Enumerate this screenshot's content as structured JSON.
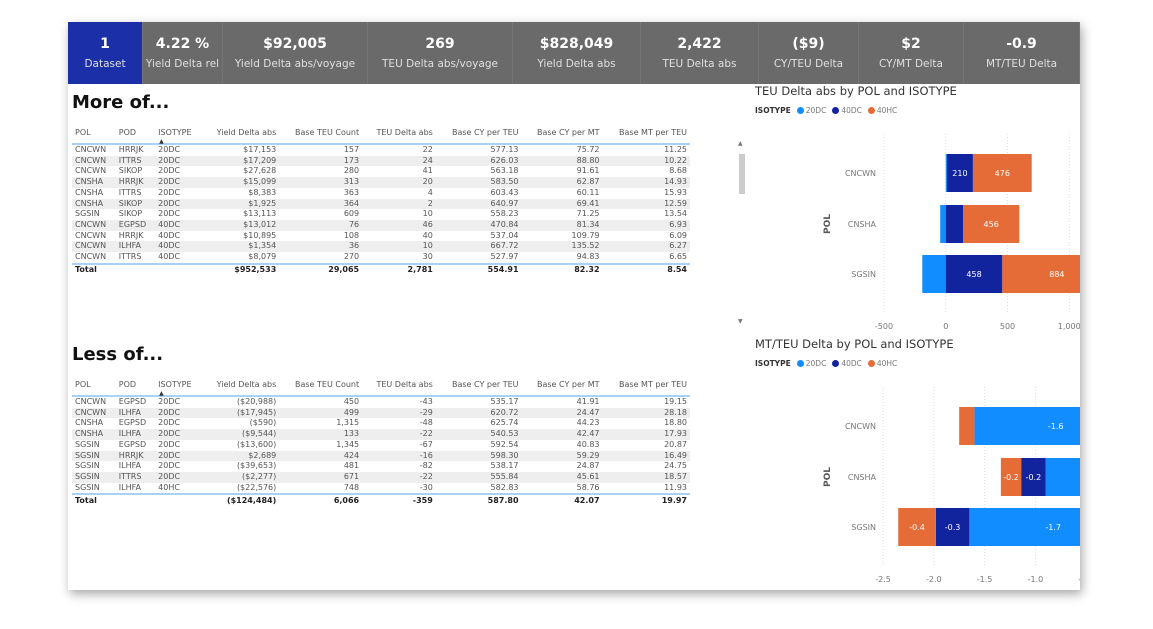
{
  "kpis": [
    {
      "value": "1",
      "label": "Dataset",
      "selected": true
    },
    {
      "value": "4.22 %",
      "label": "Yield Delta rel"
    },
    {
      "value": "$92,005",
      "label": "Yield Delta abs/voyage"
    },
    {
      "value": "269",
      "label": "TEU Delta abs/voyage"
    },
    {
      "value": "$828,049",
      "label": "Yield Delta abs"
    },
    {
      "value": "2,422",
      "label": "TEU Delta abs"
    },
    {
      "value": "($9)",
      "label": "CY/TEU Delta"
    },
    {
      "value": "$2",
      "label": "CY/MT Delta"
    },
    {
      "value": "-0.9",
      "label": "MT/TEU Delta"
    }
  ],
  "columns": [
    "POL",
    "POD",
    "ISOTYPE",
    "Yield Delta abs",
    "Base TEU Count",
    "TEU Delta abs",
    "Base CY per TEU",
    "Base CY per MT",
    "Base MT per TEU"
  ],
  "more": {
    "title": "More of...",
    "rows": [
      [
        "CNCWN",
        "HRRJK",
        "20DC",
        "$17,153",
        "157",
        "22",
        "577.13",
        "75.72",
        "11.25"
      ],
      [
        "CNCWN",
        "ITTRS",
        "20DC",
        "$17,209",
        "173",
        "24",
        "626.03",
        "88.80",
        "10.22"
      ],
      [
        "CNCWN",
        "SIKOP",
        "20DC",
        "$27,628",
        "280",
        "41",
        "563.18",
        "91.61",
        "8.68"
      ],
      [
        "CNSHA",
        "HRRJK",
        "20DC",
        "$15,099",
        "313",
        "20",
        "583.50",
        "62.87",
        "14.93"
      ],
      [
        "CNSHA",
        "ITTRS",
        "20DC",
        "$8,383",
        "363",
        "4",
        "603.43",
        "60.11",
        "15.93"
      ],
      [
        "CNSHA",
        "SIKOP",
        "20DC",
        "$1,925",
        "364",
        "2",
        "640.97",
        "69.41",
        "12.59"
      ],
      [
        "SGSIN",
        "SIKOP",
        "20DC",
        "$13,113",
        "609",
        "10",
        "558.23",
        "71.25",
        "13.54"
      ],
      [
        "CNCWN",
        "EGPSD",
        "40DC",
        "$13,012",
        "76",
        "46",
        "470.84",
        "81.34",
        "6.93"
      ],
      [
        "CNCWN",
        "HRRJK",
        "40DC",
        "$10,895",
        "108",
        "40",
        "537.04",
        "109.79",
        "6.09"
      ],
      [
        "CNCWN",
        "ILHFA",
        "40DC",
        "$1,354",
        "36",
        "10",
        "667.72",
        "135.52",
        "6.27"
      ],
      [
        "CNCWN",
        "ITTRS",
        "40DC",
        "$8,079",
        "270",
        "30",
        "527.97",
        "94.83",
        "6.65"
      ]
    ],
    "total": [
      "Total",
      "",
      "",
      "$952,533",
      "29,065",
      "2,781",
      "554.91",
      "82.32",
      "8.54"
    ]
  },
  "less": {
    "title": "Less of...",
    "rows": [
      [
        "CNCWN",
        "EGPSD",
        "20DC",
        "($20,988)",
        "450",
        "-43",
        "535.17",
        "41.91",
        "19.15"
      ],
      [
        "CNCWN",
        "ILHFA",
        "20DC",
        "($17,945)",
        "499",
        "-29",
        "620.72",
        "24.47",
        "28.18"
      ],
      [
        "CNSHA",
        "EGPSD",
        "20DC",
        "($590)",
        "1,315",
        "-48",
        "625.74",
        "44.23",
        "18.80"
      ],
      [
        "CNSHA",
        "ILHFA",
        "20DC",
        "($9,544)",
        "133",
        "-22",
        "540.53",
        "42.47",
        "17.93"
      ],
      [
        "SGSIN",
        "EGPSD",
        "20DC",
        "($13,600)",
        "1,345",
        "-67",
        "592.54",
        "40.83",
        "20.87"
      ],
      [
        "SGSIN",
        "HRRJK",
        "20DC",
        "$2,689",
        "424",
        "-16",
        "598.30",
        "59.29",
        "16.49"
      ],
      [
        "SGSIN",
        "ILHFA",
        "20DC",
        "($39,653)",
        "481",
        "-82",
        "538.17",
        "24.87",
        "24.75"
      ],
      [
        "SGSIN",
        "ITTRS",
        "20DC",
        "($2,277)",
        "671",
        "-22",
        "555.84",
        "45.61",
        "18.57"
      ],
      [
        "SGSIN",
        "ILHFA",
        "40HC",
        "($22,576)",
        "748",
        "-30",
        "582.83",
        "58.76",
        "11.93"
      ]
    ],
    "total": [
      "Total",
      "",
      "",
      "($124,484)",
      "6,066",
      "-359",
      "587.80",
      "42.07",
      "19.97"
    ]
  },
  "chart_data": [
    {
      "type": "bar",
      "orientation": "horizontal",
      "stacked": true,
      "title": "TEU Delta abs by POL and ISOTYPE",
      "ylabel": "POL",
      "legend_title": "ISOTYPE",
      "legend": "top-left",
      "categories": [
        "CNCWN",
        "CNSHA",
        "SGSIN"
      ],
      "xlim": [
        -500,
        1500
      ],
      "xticks": [
        "-500",
        "0",
        "500",
        "1,000",
        "1,500"
      ],
      "grid": true,
      "series": [
        {
          "name": "20DC",
          "color": "#118dff",
          "values": [
            10,
            -45,
            -190
          ],
          "labels": [
            "",
            "",
            ""
          ]
        },
        {
          "name": "40DC",
          "color": "#12239e",
          "values": [
            210,
            140,
            458
          ],
          "labels": [
            "210",
            "",
            "458"
          ]
        },
        {
          "name": "40HC",
          "color": "#e66c37",
          "values": [
            476,
            456,
            884
          ],
          "labels": [
            "476",
            "456",
            "884"
          ]
        }
      ]
    },
    {
      "type": "bar",
      "orientation": "horizontal",
      "stacked": true,
      "title": "MT/TEU Delta by POL and ISOTYPE",
      "ylabel": "POL",
      "legend_title": "ISOTYPE",
      "legend": "top-left",
      "categories": [
        "CNCWN",
        "CNSHA",
        "SGSIN"
      ],
      "xlim": [
        -2.5,
        0
      ],
      "xticks": [
        "-2.5",
        "-2.0",
        "-1.5",
        "-1.0",
        "-0.5",
        "0.0"
      ],
      "grid": true,
      "series": [
        {
          "name": "20DC",
          "color": "#118dff",
          "values": [
            -1.6,
            -0.9,
            -1.65
          ],
          "labels": [
            "-1.6",
            "-0.9",
            "-1.7"
          ]
        },
        {
          "name": "40DC",
          "color": "#12239e",
          "values": [
            0,
            -0.24,
            -0.33
          ],
          "labels": [
            "",
            "-0.2",
            "-0.3"
          ]
        },
        {
          "name": "40HC",
          "color": "#e66c37",
          "values": [
            -0.15,
            -0.2,
            -0.37
          ],
          "labels": [
            "",
            "-0.2",
            "-0.4"
          ]
        }
      ]
    }
  ]
}
